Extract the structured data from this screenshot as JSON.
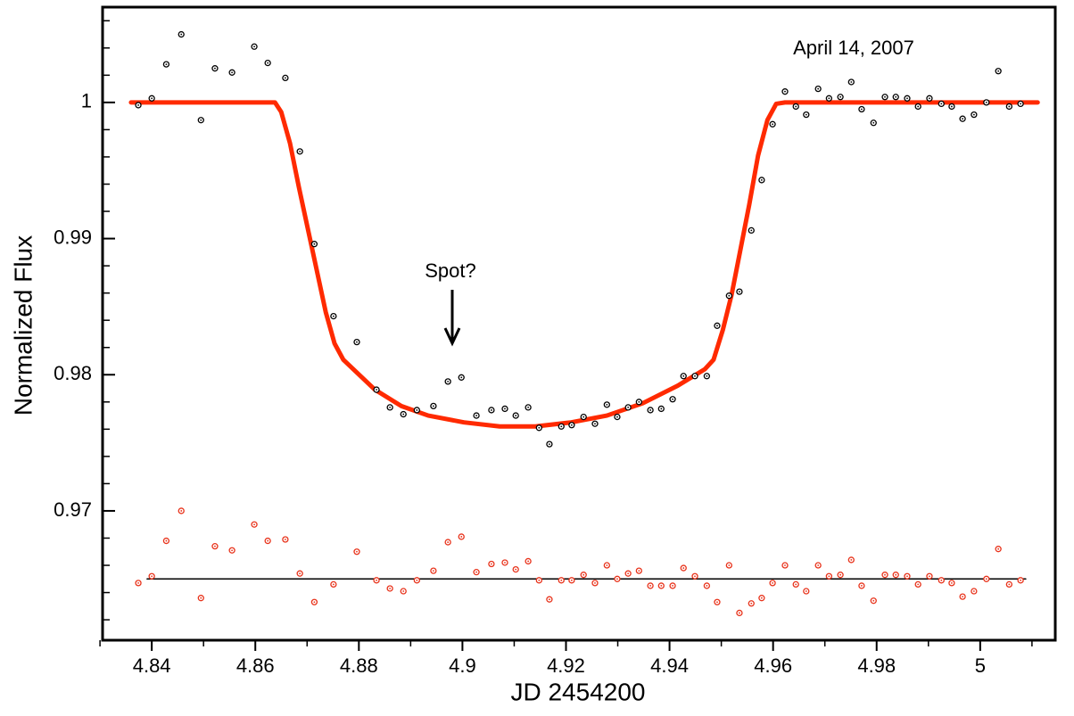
{
  "chart_data": {
    "type": "scatter",
    "xlabel": "JD 2454200",
    "ylabel": "Normalized Flux",
    "annotations": [
      "April 14, 2007",
      "Spot?"
    ],
    "xlim": [
      4.8305,
      5.0145
    ],
    "ylim": [
      0.9605,
      1.007
    ],
    "xticks": [
      4.84,
      4.86,
      4.88,
      4.9,
      4.92,
      4.94,
      4.96,
      4.98,
      5
    ],
    "yticks": [
      0.97,
      0.98,
      0.99,
      1
    ],
    "xminorticks": [
      4.83,
      4.85,
      4.87,
      4.89,
      4.91,
      4.93,
      4.95,
      4.97,
      4.99,
      5.01
    ],
    "yminorticks": [
      0.962,
      0.964,
      0.966,
      0.968,
      0.972,
      0.974,
      0.976,
      0.978,
      0.982,
      0.984,
      0.986,
      0.988,
      0.992,
      0.994,
      0.996,
      0.998,
      1.002,
      1.004,
      1.006
    ],
    "series": [
      {
        "mode": "markers",
        "color": "#000000",
        "x": [
          4.8374,
          4.84,
          4.8428,
          4.8457,
          4.8495,
          4.8522,
          4.8555,
          4.8598,
          4.8624,
          4.8658,
          4.8686,
          4.8714,
          4.8751,
          4.8796,
          4.8834,
          4.886,
          4.8886,
          4.8912,
          4.8944,
          4.8972,
          4.8998,
          4.9027,
          4.9056,
          4.9082,
          4.9103,
          4.9127,
          4.9148,
          4.9168,
          4.9191,
          4.9211,
          4.9234,
          4.9256,
          4.9279,
          4.9299,
          4.932,
          4.9341,
          4.9363,
          4.9384,
          4.9406,
          4.9427,
          4.9449,
          4.9472,
          4.9492,
          4.9515,
          4.9535,
          4.9558,
          4.9578,
          4.9599,
          4.9623,
          4.9644,
          4.9664,
          4.9687,
          4.9708,
          4.973,
          4.9751,
          4.9771,
          4.9794,
          4.9816,
          4.9837,
          4.9859,
          4.988,
          4.9902,
          4.9925,
          4.9945,
          4.9966,
          4.9988,
          5.0012,
          5.0035,
          5.0056,
          5.0078
        ],
        "values": [
          0.9998,
          1.0003,
          1.0028,
          1.005,
          0.9987,
          1.0025,
          1.0022,
          1.0041,
          1.0029,
          1.0018,
          0.9964,
          0.9896,
          0.9843,
          0.9824,
          0.9789,
          0.9776,
          0.9771,
          0.9774,
          0.9777,
          0.9795,
          0.9798,
          0.977,
          0.9774,
          0.9775,
          0.977,
          0.9776,
          0.9761,
          0.9749,
          0.9762,
          0.9763,
          0.9769,
          0.9764,
          0.9778,
          0.9769,
          0.9776,
          0.978,
          0.9774,
          0.9775,
          0.9782,
          0.9799,
          0.9799,
          0.9799,
          0.9836,
          0.9858,
          0.9861,
          0.9906,
          0.9943,
          0.9984,
          1.0008,
          0.9997,
          0.9991,
          1.001,
          1.0003,
          1.0004,
          1.0015,
          0.9995,
          0.9985,
          1.0004,
          1.0004,
          1.0003,
          0.9997,
          1.0003,
          0.9999,
          0.9997,
          0.9988,
          0.9991,
          1.0,
          1.0023,
          0.9997,
          0.9999
        ]
      },
      {
        "mode": "line",
        "color": "#ff2a00",
        "x": [
          4.836,
          4.8638,
          4.865,
          4.8667,
          4.8684,
          4.871,
          4.8736,
          4.8753,
          4.877,
          4.8831,
          4.8882,
          4.8934,
          4.9003,
          4.9072,
          4.9141,
          4.921,
          4.9279,
          4.9348,
          4.9416,
          4.9468,
          4.9485,
          4.9503,
          4.952,
          4.9537,
          4.9554,
          4.9571,
          4.9589,
          4.9606,
          4.9623,
          5.0111
        ],
        "values": [
          1,
          1,
          0.9993,
          0.997,
          0.9938,
          0.9892,
          0.9846,
          0.9823,
          0.9811,
          0.9789,
          0.9777,
          0.977,
          0.9765,
          0.9762,
          0.9762,
          0.9765,
          0.977,
          0.9779,
          0.9792,
          0.9804,
          0.9811,
          0.9833,
          0.9859,
          0.9892,
          0.9925,
          0.9961,
          0.9987,
          0.9999,
          1.0,
          1
        ]
      },
      {
        "mode": "markers",
        "color": "#e8321a",
        "x": [
          4.8374,
          4.84,
          4.8428,
          4.8457,
          4.8495,
          4.8522,
          4.8555,
          4.8598,
          4.8624,
          4.8658,
          4.8686,
          4.8714,
          4.8751,
          4.8796,
          4.8834,
          4.886,
          4.8886,
          4.8912,
          4.8944,
          4.8972,
          4.8998,
          4.9027,
          4.9056,
          4.9082,
          4.9103,
          4.9127,
          4.9148,
          4.9168,
          4.9191,
          4.9211,
          4.9234,
          4.9256,
          4.9279,
          4.9299,
          4.932,
          4.9341,
          4.9363,
          4.9384,
          4.9406,
          4.9427,
          4.9449,
          4.9472,
          4.9492,
          4.9515,
          4.9535,
          4.9558,
          4.9578,
          4.9599,
          4.9623,
          4.9644,
          4.9664,
          4.9687,
          4.9708,
          4.973,
          4.9751,
          4.9771,
          4.9794,
          4.9816,
          4.9837,
          4.9859,
          4.988,
          4.9902,
          4.9925,
          4.9945,
          4.9966,
          4.9988,
          5.0012,
          5.0035,
          5.0056,
          5.0078
        ],
        "values": [
          0.9647,
          0.9652,
          0.9678,
          0.97,
          0.9636,
          0.9674,
          0.9671,
          0.969,
          0.9678,
          0.9679,
          0.9654,
          0.9633,
          0.9646,
          0.967,
          0.9649,
          0.9643,
          0.9641,
          0.9649,
          0.9656,
          0.9677,
          0.9681,
          0.9655,
          0.9661,
          0.9662,
          0.9657,
          0.9663,
          0.9649,
          0.9635,
          0.9649,
          0.9649,
          0.9653,
          0.9647,
          0.966,
          0.965,
          0.9654,
          0.9656,
          0.9645,
          0.9645,
          0.9645,
          0.9658,
          0.9652,
          0.9645,
          0.9633,
          0.966,
          0.9625,
          0.9632,
          0.9636,
          0.9647,
          0.966,
          0.9646,
          0.9641,
          0.966,
          0.9652,
          0.9653,
          0.9664,
          0.9645,
          0.9634,
          0.9653,
          0.9653,
          0.9652,
          0.9646,
          0.9652,
          0.9649,
          0.9647,
          0.9637,
          0.9641,
          0.965,
          0.9672,
          0.9646,
          0.9649
        ]
      },
      {
        "mode": "thinline",
        "color": "#000000",
        "x": [
          4.8391,
          5.0088
        ],
        "values": [
          0.965,
          0.965
        ]
      }
    ]
  }
}
